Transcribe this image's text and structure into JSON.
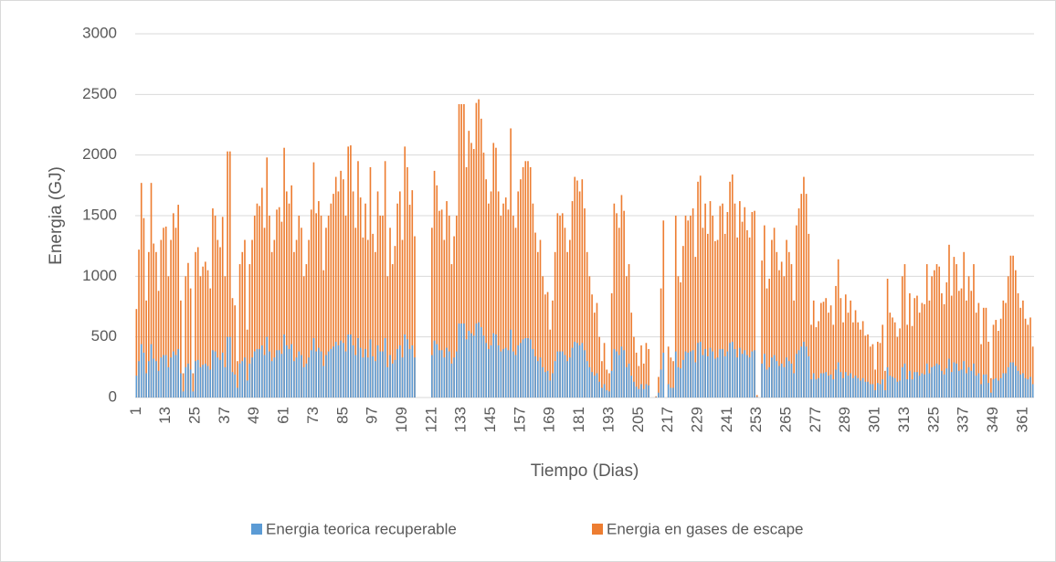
{
  "chart_data": {
    "type": "bar",
    "overlap": true,
    "y_label": "Energia (GJ)",
    "x_label": "Tiempo (Dias)",
    "ylim": [
      0,
      3000
    ],
    "yticks": [
      0,
      500,
      1000,
      1500,
      2000,
      2500,
      3000
    ],
    "grid": true,
    "legend": "bottom",
    "categories": [
      "1",
      null,
      null,
      null,
      null,
      null,
      null,
      null,
      null,
      null,
      null,
      null,
      "13",
      null,
      null,
      null,
      null,
      null,
      null,
      null,
      null,
      null,
      null,
      null,
      "25",
      null,
      null,
      null,
      null,
      null,
      null,
      null,
      null,
      null,
      null,
      null,
      "37",
      null,
      null,
      null,
      null,
      null,
      null,
      null,
      null,
      null,
      null,
      null,
      "49",
      null,
      null,
      null,
      null,
      null,
      null,
      null,
      null,
      null,
      null,
      null,
      "61",
      null,
      null,
      null,
      null,
      null,
      null,
      null,
      null,
      null,
      null,
      null,
      "73",
      null,
      null,
      null,
      null,
      null,
      null,
      null,
      null,
      null,
      null,
      null,
      "85",
      null,
      null,
      null,
      null,
      null,
      null,
      null,
      null,
      null,
      null,
      null,
      "97",
      null,
      null,
      null,
      null,
      null,
      null,
      null,
      null,
      null,
      null,
      null,
      "109",
      null,
      null,
      null,
      null,
      null,
      null,
      null,
      null,
      null,
      null,
      null,
      "121",
      null,
      null,
      null,
      null,
      null,
      null,
      null,
      null,
      null,
      null,
      null,
      "133",
      null,
      null,
      null,
      null,
      null,
      null,
      null,
      null,
      null,
      null,
      null,
      "145",
      null,
      null,
      null,
      null,
      null,
      null,
      null,
      null,
      null,
      null,
      null,
      "157",
      null,
      null,
      null,
      null,
      null,
      null,
      null,
      null,
      null,
      null,
      null,
      "169",
      null,
      null,
      null,
      null,
      null,
      null,
      null,
      null,
      null,
      null,
      null,
      "181",
      null,
      null,
      null,
      null,
      null,
      null,
      null,
      null,
      null,
      null,
      null,
      "193",
      null,
      null,
      null,
      null,
      null,
      null,
      null,
      null,
      null,
      null,
      null,
      "205",
      null,
      null,
      null,
      null,
      null,
      null,
      null,
      null,
      null,
      null,
      null,
      "217",
      null,
      null,
      null,
      null,
      null,
      null,
      null,
      null,
      null,
      null,
      null,
      "229",
      null,
      null,
      null,
      null,
      null,
      null,
      null,
      null,
      null,
      null,
      null,
      "241",
      null,
      null,
      null,
      null,
      null,
      null,
      null,
      null,
      null,
      null,
      null,
      "253",
      null,
      null,
      null,
      null,
      null,
      null,
      null,
      null,
      null,
      null,
      null,
      "265",
      null,
      null,
      null,
      null,
      null,
      null,
      null,
      null,
      null,
      null,
      null,
      "277",
      null,
      null,
      null,
      null,
      null,
      null,
      null,
      null,
      null,
      null,
      null,
      "289",
      null,
      null,
      null,
      null,
      null,
      null,
      null,
      null,
      null,
      null,
      null,
      "301",
      null,
      null,
      null,
      null,
      null,
      null,
      null,
      null,
      null,
      null,
      null,
      "313",
      null,
      null,
      null,
      null,
      null,
      null,
      null,
      null,
      null,
      null,
      null,
      "325",
      null,
      null,
      null,
      null,
      null,
      null,
      null,
      null,
      null,
      null,
      null,
      "337",
      null,
      null,
      null,
      null,
      null,
      null,
      null,
      null,
      null,
      null,
      null,
      "349",
      null,
      null,
      null,
      null,
      null,
      null,
      null,
      null,
      null,
      null,
      null,
      "361",
      null,
      null,
      null,
      null
    ],
    "series": [
      {
        "name": "Energia en gases de escape",
        "color": "#ed7d31",
        "values": [
          730,
          1220,
          1770,
          1480,
          800,
          1200,
          1770,
          1270,
          1200,
          880,
          1300,
          1400,
          1410,
          1000,
          1300,
          1520,
          1400,
          1590,
          800,
          200,
          1000,
          1110,
          900,
          200,
          1200,
          1240,
          1000,
          1080,
          1120,
          1050,
          900,
          1560,
          1500,
          1300,
          1240,
          1490,
          1000,
          2030,
          2030,
          820,
          760,
          300,
          1100,
          1200,
          1300,
          560,
          1100,
          1300,
          1500,
          1600,
          1580,
          1730,
          1400,
          1980,
          1500,
          1200,
          1300,
          1550,
          1570,
          1450,
          2060,
          1700,
          1600,
          1750,
          1200,
          1300,
          1500,
          1400,
          1000,
          1100,
          1300,
          1550,
          1940,
          1520,
          1620,
          1500,
          1050,
          1400,
          1500,
          1600,
          1680,
          1820,
          1700,
          1870,
          1800,
          1500,
          2070,
          2080,
          1700,
          1400,
          1950,
          1650,
          1320,
          1600,
          1300,
          1900,
          1350,
          1200,
          1700,
          1500,
          1500,
          1950,
          1000,
          1400,
          1100,
          1250,
          1600,
          1700,
          1300,
          2070,
          1900,
          1590,
          1710,
          1330,
          0,
          0,
          0,
          0,
          0,
          0,
          1400,
          1870,
          1750,
          1540,
          1550,
          1300,
          1620,
          1500,
          1100,
          1330,
          1500,
          2420,
          2420,
          2420,
          1900,
          2200,
          2100,
          2050,
          2430,
          2460,
          2300,
          2020,
          1800,
          1600,
          1700,
          2100,
          2060,
          1700,
          1500,
          1600,
          1650,
          1550,
          2220,
          1500,
          1400,
          1700,
          1800,
          1900,
          1950,
          1950,
          1900,
          1600,
          1360,
          1200,
          1300,
          1000,
          850,
          870,
          560,
          800,
          1200,
          1520,
          1500,
          1520,
          1400,
          1200,
          1300,
          1620,
          1820,
          1790,
          1700,
          1800,
          1560,
          1200,
          1000,
          850,
          700,
          780,
          500,
          300,
          450,
          230,
          200,
          860,
          1600,
          1520,
          1400,
          1670,
          1540,
          1000,
          1100,
          700,
          500,
          370,
          260,
          430,
          280,
          450,
          400,
          0,
          0,
          10,
          170,
          900,
          1460,
          0,
          420,
          330,
          300,
          1500,
          1000,
          950,
          1250,
          1500,
          1460,
          1500,
          1560,
          1160,
          1780,
          1830,
          1400,
          1600,
          1350,
          1620,
          1500,
          1290,
          1300,
          1580,
          1600,
          1350,
          1530,
          1780,
          1840,
          1600,
          1320,
          1620,
          1450,
          1570,
          1380,
          1320,
          1530,
          1540,
          20,
          0,
          1130,
          1420,
          900,
          980,
          1300,
          1400,
          1200,
          1050,
          1120,
          1000,
          1300,
          1200,
          1100,
          800,
          1420,
          1560,
          1680,
          1820,
          1680,
          1350,
          600,
          800,
          580,
          630,
          780,
          790,
          820,
          700,
          760,
          600,
          920,
          1140,
          820,
          620,
          850,
          700,
          800,
          620,
          720,
          620,
          560,
          630,
          510,
          520,
          420,
          440,
          230,
          460,
          450,
          600,
          220,
          980,
          700,
          660,
          620,
          500,
          570,
          1000,
          1100,
          600,
          860,
          590,
          820,
          840,
          700,
          780,
          770,
          1100,
          800,
          1000,
          1050,
          1100,
          1080,
          860,
          770,
          950,
          1260,
          840,
          1160,
          1100,
          880,
          900,
          1200,
          800,
          1000,
          880,
          1100,
          700,
          780,
          440,
          740,
          740,
          460,
          160,
          600,
          640,
          550,
          650,
          800,
          780,
          1000,
          1170,
          1170,
          1050,
          860,
          740,
          800,
          650,
          600,
          660,
          420
        ]
      },
      {
        "name": "Energia teorica recuperable",
        "color": "#5b9bd5",
        "values": [
          180,
          300,
          440,
          370,
          200,
          300,
          440,
          320,
          300,
          220,
          330,
          350,
          350,
          250,
          330,
          380,
          350,
          400,
          200,
          50,
          250,
          280,
          230,
          50,
          300,
          310,
          250,
          270,
          280,
          260,
          230,
          390,
          380,
          330,
          310,
          370,
          250,
          500,
          500,
          210,
          190,
          80,
          280,
          300,
          330,
          140,
          280,
          330,
          380,
          400,
          400,
          430,
          350,
          500,
          380,
          300,
          330,
          390,
          390,
          360,
          520,
          430,
          400,
          440,
          300,
          330,
          380,
          350,
          250,
          280,
          330,
          390,
          490,
          380,
          410,
          380,
          260,
          350,
          380,
          400,
          420,
          460,
          430,
          470,
          450,
          380,
          520,
          520,
          430,
          350,
          490,
          410,
          330,
          400,
          330,
          480,
          340,
          300,
          430,
          380,
          380,
          490,
          250,
          350,
          280,
          310,
          400,
          430,
          330,
          520,
          480,
          400,
          430,
          330,
          0,
          0,
          0,
          0,
          0,
          0,
          350,
          470,
          440,
          390,
          390,
          330,
          410,
          380,
          280,
          330,
          380,
          610,
          610,
          610,
          480,
          550,
          530,
          510,
          610,
          620,
          580,
          510,
          450,
          400,
          430,
          530,
          520,
          430,
          380,
          400,
          410,
          390,
          560,
          380,
          350,
          430,
          450,
          480,
          490,
          490,
          480,
          400,
          340,
          300,
          330,
          250,
          210,
          220,
          140,
          200,
          300,
          380,
          380,
          380,
          350,
          300,
          330,
          410,
          460,
          450,
          430,
          450,
          390,
          300,
          250,
          210,
          180,
          200,
          130,
          80,
          110,
          60,
          50,
          220,
          400,
          380,
          350,
          420,
          390,
          250,
          280,
          180,
          130,
          90,
          70,
          110,
          70,
          110,
          100,
          0,
          0,
          3,
          40,
          230,
          370,
          0,
          110,
          80,
          80,
          380,
          250,
          240,
          310,
          380,
          370,
          380,
          390,
          290,
          450,
          460,
          350,
          400,
          340,
          410,
          380,
          320,
          330,
          400,
          400,
          340,
          380,
          450,
          460,
          400,
          330,
          410,
          360,
          390,
          350,
          330,
          380,
          390,
          5,
          0,
          280,
          360,
          230,
          250,
          330,
          350,
          300,
          260,
          280,
          250,
          330,
          300,
          280,
          200,
          360,
          390,
          420,
          460,
          420,
          340,
          150,
          200,
          150,
          160,
          200,
          200,
          210,
          180,
          190,
          150,
          230,
          290,
          210,
          160,
          210,
          180,
          200,
          160,
          180,
          160,
          140,
          160,
          130,
          130,
          110,
          110,
          60,
          120,
          110,
          150,
          60,
          250,
          180,
          170,
          160,
          130,
          140,
          250,
          280,
          150,
          220,
          150,
          210,
          210,
          180,
          200,
          190,
          280,
          200,
          250,
          260,
          280,
          270,
          220,
          190,
          240,
          320,
          210,
          290,
          280,
          220,
          230,
          300,
          200,
          250,
          220,
          280,
          180,
          200,
          110,
          190,
          190,
          120,
          40,
          150,
          160,
          140,
          160,
          200,
          200,
          250,
          290,
          290,
          260,
          220,
          190,
          200,
          160,
          150,
          170,
          110
        ]
      }
    ]
  }
}
